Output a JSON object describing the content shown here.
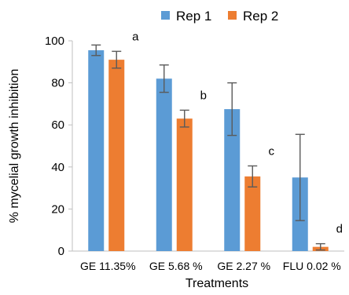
{
  "chart_data": {
    "type": "bar",
    "title": "",
    "xlabel": "Treatments",
    "ylabel": "% mycelial growth inhibition",
    "ylim": [
      0,
      100
    ],
    "yticks": [
      0,
      20,
      40,
      60,
      80,
      100
    ],
    "categories": [
      "GE  11.35%",
      "GE 5.68 %",
      "GE 2.27 %",
      "FLU 0.02 %"
    ],
    "series": [
      {
        "name": "Rep 1",
        "color": "#5B9BD5",
        "values": [
          95.5,
          82,
          67.5,
          35
        ],
        "errors": [
          2.5,
          6.5,
          12.5,
          20.5
        ]
      },
      {
        "name": "Rep 2",
        "color": "#ED7D31",
        "values": [
          91,
          63,
          35.5,
          2
        ],
        "errors": [
          4,
          4,
          5,
          1.5
        ]
      }
    ],
    "significance_letters": [
      "a",
      "b",
      "c",
      "d"
    ],
    "grid": false,
    "legend": "top",
    "error_bar_color": "#5A5A5A",
    "axis_color": "#BFBFBF"
  }
}
